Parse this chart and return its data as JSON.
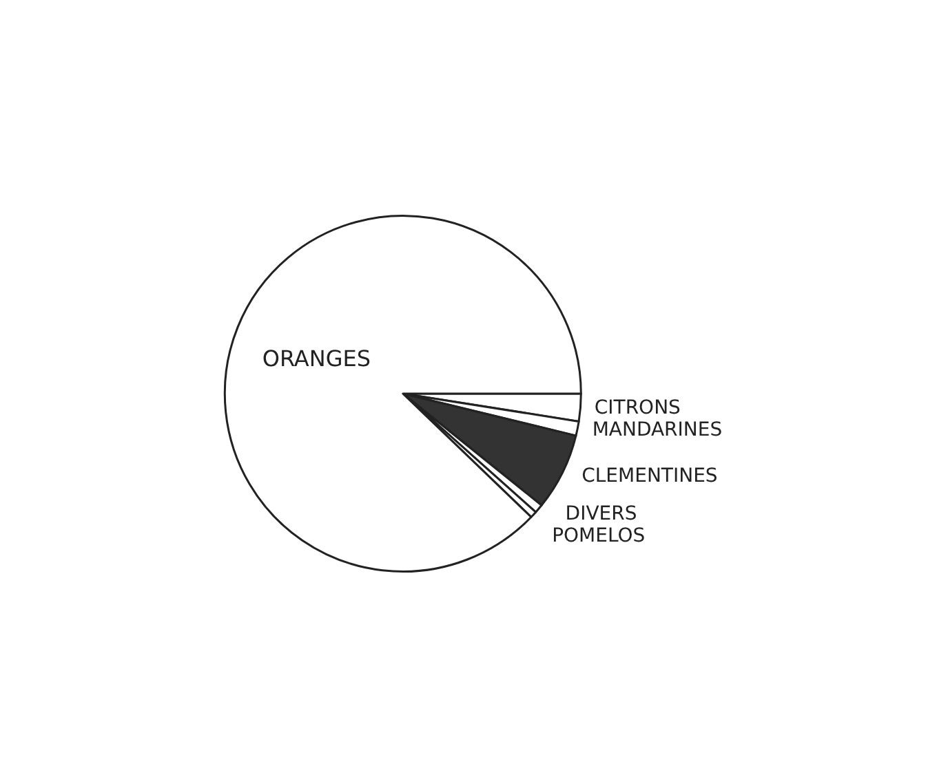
{
  "chart_data": {
    "type": "pie",
    "categories": [
      "CITRONS",
      "MANDARINES",
      "CLEMENTINES",
      "DIVERS",
      "POMELOS",
      "ORANGES"
    ],
    "values": [
      2.5,
      1.3,
      7,
      0.8,
      0.6,
      87.8
    ],
    "colors": [
      "#ffffff",
      "#ffffff",
      "#333333",
      "#ffffff",
      "#ffffff",
      "#ffffff"
    ]
  }
}
